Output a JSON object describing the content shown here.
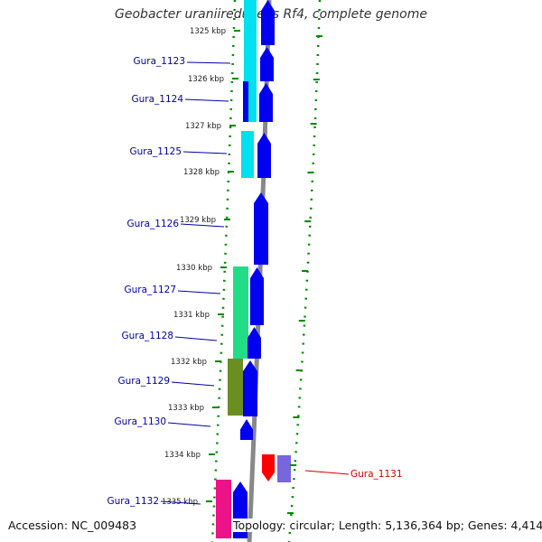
{
  "title": "Geobacter uraniireducens Rf4, complete genome",
  "footer": {
    "accession": "Accession: NC_009483",
    "summary": "Topology: circular; Length: 5,136,364 bp; Genes: 4,414"
  },
  "colors": {
    "backbone": "#888888",
    "forward_cds": "#0000ee",
    "reverse_cds": "#7766dd",
    "reverse_cds_highlight": "#ff0000",
    "forward_label": "#0000aa",
    "reverse_label": "#cc0000",
    "tick_dots": "#008800"
  },
  "kbp_ticks": [
    "1325 kbp",
    "1326 kbp",
    "1327 kbp",
    "1328 kbp",
    "1329 kbp",
    "1330 kbp",
    "1331 kbp",
    "1332 kbp",
    "1333 kbp",
    "1334 kbp",
    "1335 kbp"
  ],
  "genes": [
    {
      "name": "Gura_1123",
      "strand": "forward",
      "color": "#0000ee"
    },
    {
      "name": "Gura_1124",
      "strand": "forward",
      "color": "#0000ee"
    },
    {
      "name": "Gura_1125",
      "strand": "forward",
      "color": "#0000ee"
    },
    {
      "name": "Gura_1126",
      "strand": "forward",
      "color": "#0000ee"
    },
    {
      "name": "Gura_1127",
      "strand": "forward",
      "color": "#0000ee"
    },
    {
      "name": "Gura_1128",
      "strand": "forward",
      "color": "#0000ee"
    },
    {
      "name": "Gura_1129",
      "strand": "forward",
      "color": "#0000ee"
    },
    {
      "name": "Gura_1130",
      "strand": "forward",
      "color": "#0000ee"
    },
    {
      "name": "Gura_1131",
      "strand": "reverse",
      "color": "#ff0000"
    },
    {
      "name": "Gura_1132",
      "strand": "forward",
      "color": "#0000ee"
    }
  ]
}
